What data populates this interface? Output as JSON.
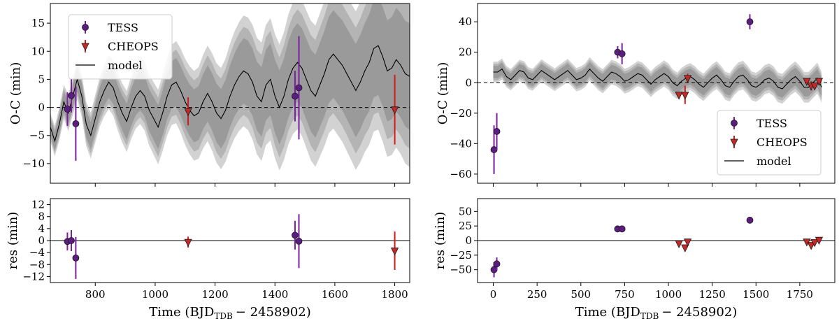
{
  "chart_data": [
    {
      "id": "left_top",
      "type": "scatter",
      "ylabel": "O-C (min)",
      "xlim": [
        650,
        1850
      ],
      "ylim": [
        -13.5,
        18.5
      ],
      "yticks": [
        -10,
        -5,
        0,
        5,
        10,
        15
      ],
      "legend": {
        "placement": "top-left",
        "entries": [
          "TESS",
          "CHEOPS",
          "model"
        ]
      },
      "zero_line": true,
      "model": {
        "x_start": 650,
        "x_step": 15,
        "y": [
          -3.5,
          -6,
          -3,
          1,
          -1,
          2,
          5,
          2,
          -3,
          -5,
          -2,
          1,
          3,
          4.5,
          3.5,
          1,
          -1,
          -2.5,
          0,
          2,
          3,
          2,
          -0.5,
          -2,
          -3.5,
          -1,
          2,
          4,
          4.5,
          3,
          1,
          -0.5,
          -1.5,
          -1,
          1,
          2.5,
          1,
          -1,
          -2,
          -0.5,
          2,
          4,
          5.5,
          6.5,
          6,
          4.5,
          2,
          1,
          4,
          5,
          2,
          0,
          2,
          5,
          7,
          8,
          7,
          5,
          3,
          2,
          4,
          6,
          8.5,
          9.5,
          8.5,
          7.5,
          6,
          4.5,
          3,
          4.5,
          6.5,
          8,
          10.5,
          11,
          9,
          6.5,
          7,
          8.5,
          7.5,
          6,
          5.5
        ]
      },
      "band": {
        "sigma_start": 1.5,
        "sigma_end": 9.5,
        "widths": [
          1.0,
          1.35,
          1.7
        ]
      },
      "series": [
        {
          "name": "TESS",
          "marker": "circle",
          "color": "#5b1e80",
          "errcolor": "#7b1fa2",
          "points": [
            {
              "x": 707,
              "y": -0.3,
              "err": 3
            },
            {
              "x": 720,
              "y": 2.1,
              "err": 3
            },
            {
              "x": 735,
              "y": -2.9,
              "err": 6.6
            },
            {
              "x": 1467,
              "y": 2,
              "err": 4.5
            },
            {
              "x": 1480,
              "y": 3.5,
              "err": 9.2
            }
          ]
        },
        {
          "name": "CHEOPS",
          "marker": "triangle-down",
          "color": "#c62828",
          "errcolor": "#d01c1c",
          "points": [
            {
              "x": 1110,
              "y": -0.7,
              "err": 2.5
            },
            {
              "x": 1800,
              "y": -0.4,
              "err": 6.2
            }
          ]
        }
      ]
    },
    {
      "id": "left_bottom",
      "type": "scatter",
      "xlabel": "Time (BJD",
      "xlabel_sub": "TDB",
      "xlabel_tail": "− 2458902)",
      "ylabel": "res (min)",
      "xlim": [
        650,
        1850
      ],
      "ylim": [
        -14,
        14
      ],
      "xticks": [
        800,
        1000,
        1200,
        1400,
        1600,
        1800
      ],
      "yticks": [
        -12,
        -8,
        -4,
        0,
        4,
        8,
        12
      ],
      "zero_line": true,
      "series": [
        {
          "name": "TESS",
          "marker": "circle",
          "color": "#5b1e80",
          "errcolor": "#7b1fa2",
          "points": [
            {
              "x": 707,
              "y": -0.3,
              "err": 3
            },
            {
              "x": 720,
              "y": 0,
              "err": 3.5
            },
            {
              "x": 735,
              "y": -5.8,
              "err": 7
            },
            {
              "x": 1467,
              "y": 1.8,
              "err": 4.8
            },
            {
              "x": 1480,
              "y": -0.2,
              "err": 9
            }
          ]
        },
        {
          "name": "CHEOPS",
          "marker": "triangle-down",
          "color": "#c62828",
          "errcolor": "#d01c1c",
          "points": [
            {
              "x": 1110,
              "y": -0.5,
              "err": 1.8
            },
            {
              "x": 1800,
              "y": -3.4,
              "err": 6.4
            }
          ]
        }
      ]
    },
    {
      "id": "right_top",
      "type": "scatter",
      "ylabel": "O-C (min)",
      "xlim": [
        -90,
        1950
      ],
      "ylim": [
        -66,
        52
      ],
      "yticks": [
        -60,
        -40,
        -20,
        0,
        20,
        40
      ],
      "legend": {
        "placement": "lower-right",
        "entries": [
          "TESS",
          "CHEOPS",
          "model"
        ]
      },
      "zero_line": true,
      "model": {
        "x_start": 0,
        "x_step": 25,
        "y": [
          7,
          7,
          9,
          4,
          2,
          5,
          8,
          7,
          3,
          2,
          5,
          8,
          6,
          4,
          2,
          4,
          6,
          8,
          5,
          2,
          3,
          5,
          9,
          6,
          3,
          1,
          4,
          7,
          6,
          4,
          1,
          2,
          4,
          6,
          5,
          2,
          -1,
          2,
          4,
          6,
          4,
          0,
          -2,
          1,
          3,
          4,
          2,
          -1,
          -3,
          0,
          3,
          5,
          2,
          -2,
          -3,
          1,
          4,
          5,
          2,
          -2,
          -3,
          -1,
          2,
          3,
          1,
          -3,
          -4,
          -1,
          2,
          4,
          1,
          -3,
          -3,
          0,
          3,
          -3
        ]
      },
      "band": {
        "sigma_start": 4,
        "sigma_end": 6,
        "widths": [
          1.0,
          1.35,
          1.7
        ]
      },
      "series": [
        {
          "name": "TESS",
          "marker": "circle",
          "color": "#5b1e80",
          "errcolor": "#7b1fa2",
          "points": [
            {
              "x": 4,
              "y": -44,
              "err": 16
            },
            {
              "x": 20,
              "y": -32,
              "err": 12
            },
            {
              "x": 710,
              "y": 20,
              "err": 4
            },
            {
              "x": 735,
              "y": 19,
              "err": 7
            },
            {
              "x": 1465,
              "y": 40,
              "err": 5
            }
          ]
        },
        {
          "name": "CHEOPS",
          "marker": "triangle-down",
          "color": "#c62828",
          "errcolor": "#d01c1c",
          "points": [
            {
              "x": 1060,
              "y": -8,
              "err": 2
            },
            {
              "x": 1095,
              "y": -8,
              "err": 6
            },
            {
              "x": 1110,
              "y": 3,
              "err": 3
            },
            {
              "x": 1790,
              "y": 1,
              "err": 2
            },
            {
              "x": 1815,
              "y": -2,
              "err": 3
            },
            {
              "x": 1835,
              "y": -2,
              "err": 2
            },
            {
              "x": 1860,
              "y": 1,
              "err": 2
            }
          ]
        }
      ]
    },
    {
      "id": "right_bottom",
      "type": "scatter",
      "xlabel": "Time (BJD",
      "xlabel_sub": "TDB",
      "xlabel_tail": "− 2458902)",
      "ylabel": "res (min)",
      "xlim": [
        -90,
        1950
      ],
      "ylim": [
        -72,
        72
      ],
      "xticks": [
        0,
        250,
        500,
        750,
        1000,
        1250,
        1500,
        1750
      ],
      "yticks": [
        -50,
        -25,
        0,
        25,
        50
      ],
      "zero_line": true,
      "series": [
        {
          "name": "TESS",
          "marker": "circle",
          "color": "#5b1e80",
          "errcolor": "#7b1fa2",
          "points": [
            {
              "x": 4,
              "y": -50,
              "err": 13
            },
            {
              "x": 20,
              "y": -40,
              "err": 11
            },
            {
              "x": 710,
              "y": 20,
              "err": 3
            },
            {
              "x": 735,
              "y": 20,
              "err": 3
            },
            {
              "x": 1465,
              "y": 35,
              "err": 2
            }
          ]
        },
        {
          "name": "CHEOPS",
          "marker": "triangle-down",
          "color": "#c62828",
          "errcolor": "#d01c1c",
          "points": [
            {
              "x": 1060,
              "y": -5,
              "err": 2
            },
            {
              "x": 1095,
              "y": -12,
              "err": 4
            },
            {
              "x": 1110,
              "y": -2,
              "err": 2
            },
            {
              "x": 1790,
              "y": -2,
              "err": 2
            },
            {
              "x": 1815,
              "y": -8,
              "err": 3
            },
            {
              "x": 1835,
              "y": -3,
              "err": 2
            },
            {
              "x": 1860,
              "y": 1,
              "err": 2
            }
          ]
        }
      ]
    }
  ]
}
